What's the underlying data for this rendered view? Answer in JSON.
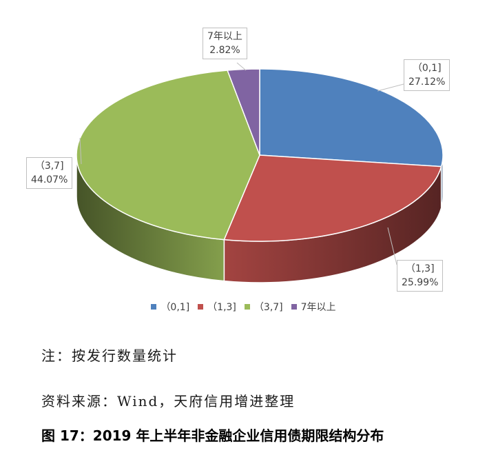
{
  "chart_data": {
    "type": "pie",
    "style": "3d",
    "categories": [
      "（0,1]",
      "（1,3]",
      "（3,7]",
      "7年以上"
    ],
    "values": [
      27.12,
      25.99,
      44.07,
      2.82
    ],
    "value_labels": [
      "27.12%",
      "25.99%",
      "44.07%",
      "2.82%"
    ],
    "colors": [
      "#4f81bd",
      "#c0504d",
      "#9bbb59",
      "#8064a2"
    ],
    "legend_position": "bottom",
    "title": ""
  },
  "note": "注：按发行数量统计",
  "source": "资料来源：Wind，天府信用增进整理",
  "caption": "图 17：2019 年上半年非金融企业信用债期限结构分布"
}
